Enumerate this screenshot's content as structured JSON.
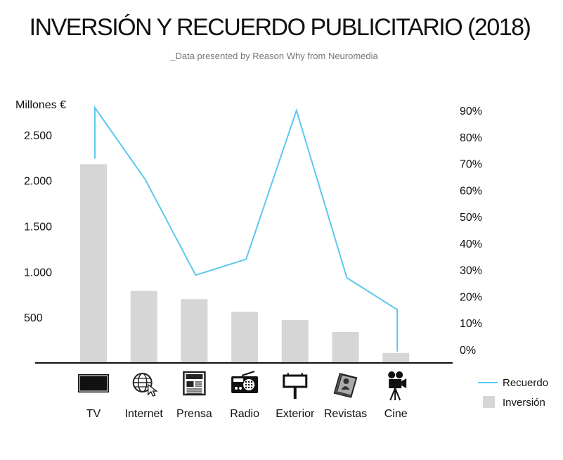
{
  "chart_data": {
    "type": "bar",
    "title": "INVERSIÓN Y RECUERDO PUBLICITARIO (2018)",
    "subtitle": "_Data presented by Reason Why from Neuromedia",
    "ylabel_left": "Millones €",
    "categories": [
      "TV",
      "Internet",
      "Prensa",
      "Radio",
      "Exterior",
      "Revistas",
      "Cine"
    ],
    "category_icons": [
      "tv-icon",
      "globe-cursor-icon",
      "newspaper-icon",
      "radio-icon",
      "billboard-icon",
      "magazine-icon",
      "film-camera-icon"
    ],
    "left_axis": {
      "ylim": [
        0,
        2800
      ],
      "ticks": [
        500,
        1000,
        1500,
        2000,
        2500
      ],
      "tick_labels": [
        "500",
        "1.000",
        "1.500",
        "2.000",
        "2.500"
      ]
    },
    "right_axis": {
      "ylim": [
        0,
        95
      ],
      "ticks": [
        0,
        10,
        20,
        30,
        40,
        50,
        60,
        70,
        80,
        90
      ],
      "tick_labels": [
        "0%",
        "10%",
        "20%",
        "30%",
        "40%",
        "50%",
        "60%",
        "70%",
        "80%",
        "90%"
      ]
    },
    "series": [
      {
        "name": "Inversión",
        "kind": "bar",
        "axis": "left",
        "color": "#d6d6d6",
        "values": [
          2180,
          790,
          700,
          560,
          470,
          340,
          110
        ]
      },
      {
        "name": "Recuerdo",
        "kind": "line",
        "axis": "right",
        "color": "#5bc8f0",
        "values": [
          91,
          64,
          28,
          34,
          90,
          27,
          15
        ]
      }
    ],
    "legend": {
      "position": "bottom-right",
      "entries": [
        "Recuerdo",
        "Inversión"
      ]
    },
    "grid": false
  }
}
